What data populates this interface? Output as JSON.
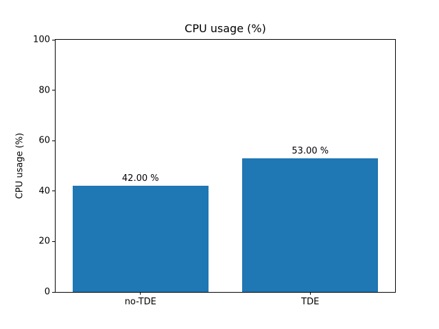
{
  "chart_data": {
    "type": "bar",
    "title": "CPU usage (%)",
    "xlabel": "",
    "ylabel": "CPU usage (%)",
    "categories": [
      "no-TDE",
      "TDE"
    ],
    "values": [
      42,
      53
    ],
    "bar_value_labels": [
      "42.00 %",
      "53.00 %"
    ],
    "yticks": [
      0,
      20,
      40,
      60,
      80,
      100
    ],
    "ylim": [
      0,
      100
    ],
    "bar_color": "#1f77b4",
    "axis_color": "#000000",
    "background_color": "#ffffff",
    "grid": false,
    "legend": "none",
    "bar_width_fraction": 0.8
  }
}
